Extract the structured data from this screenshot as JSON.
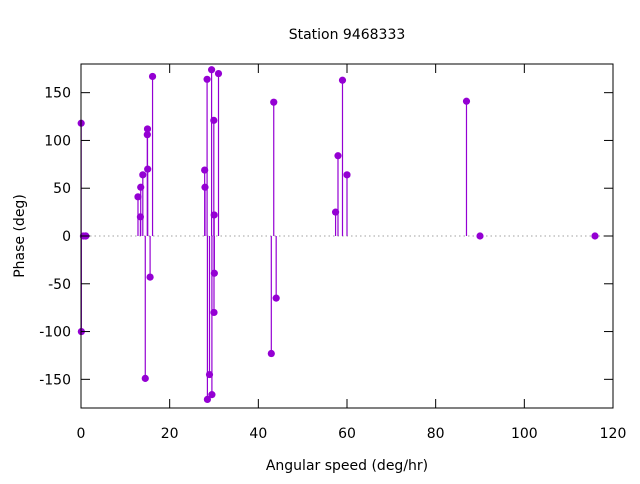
{
  "chart_data": {
    "type": "scatter",
    "style": "impulses-with-points",
    "title": "Station 9468333",
    "xlabel": "Angular speed (deg/hr)",
    "ylabel": "Phase (deg)",
    "xlim": [
      0,
      120
    ],
    "ylim": [
      -180,
      180
    ],
    "xticks": [
      0,
      20,
      40,
      60,
      80,
      100,
      120
    ],
    "yticks": [
      -150,
      -100,
      -50,
      0,
      50,
      100,
      150
    ],
    "grid": false,
    "legend": "none",
    "color": "#9400d3",
    "zero_line_color": "#a0a0a0",
    "x": [
      0.041,
      0.082,
      0.544,
      1.016,
      1.098,
      12.854,
      13.399,
      13.471,
      13.943,
      14.497,
      14.959,
      15.0,
      15.041,
      15.585,
      16.139,
      27.895,
      27.968,
      28.44,
      28.513,
      28.984,
      29.456,
      29.528,
      29.959,
      30.0,
      30.041,
      30.082,
      31.016,
      42.927,
      43.476,
      44.025,
      57.424,
      57.968,
      58.984,
      60.0,
      86.952,
      90.0,
      115.936
    ],
    "y": [
      118,
      -100,
      0,
      0,
      0,
      41,
      20,
      51,
      64,
      -149,
      106,
      112,
      70,
      -43,
      167,
      69,
      51,
      164,
      -171,
      -145,
      174,
      -166,
      121,
      -80,
      22,
      -39,
      170,
      -123,
      140,
      -65,
      25,
      84,
      163,
      64,
      141,
      0,
      0
    ]
  }
}
